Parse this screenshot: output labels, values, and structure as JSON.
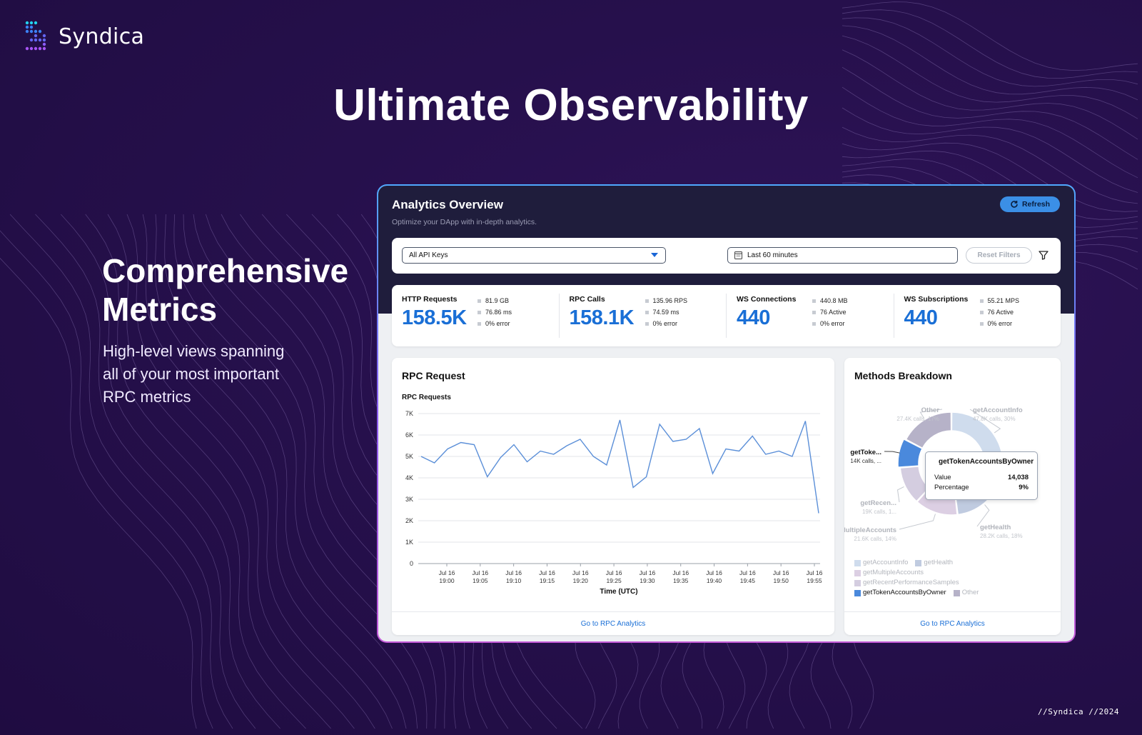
{
  "brand": {
    "name": "Syndica"
  },
  "hero": {
    "title": "Ultimate Observability"
  },
  "side": {
    "title_line1": "Comprehensive",
    "title_line2": "Metrics",
    "desc_line1": "High-level views spanning",
    "desc_line2": "all of your most important",
    "desc_line3": "RPC metrics"
  },
  "footer": {
    "tag": "//Syndica //2024"
  },
  "dashboard": {
    "title": "Analytics Overview",
    "subtitle": "Optimize your DApp with in-depth analytics.",
    "refresh_label": "Refresh",
    "filters": {
      "api_keys_value": "All API Keys",
      "time_range_value": "Last 60 minutes",
      "reset_label": "Reset Filters"
    },
    "stats": [
      {
        "label": "HTTP Requests",
        "value": "158.5K",
        "details": [
          "81.9 GB",
          "76.86 ms",
          "0% error"
        ]
      },
      {
        "label": "RPC Calls",
        "value": "158.1K",
        "details": [
          "135.96 RPS",
          "74.59 ms",
          "0% error"
        ]
      },
      {
        "label": "WS Connections",
        "value": "440",
        "details": [
          "440.8 MB",
          "76 Active",
          "0% error"
        ]
      },
      {
        "label": "WS Subscriptions",
        "value": "440",
        "details": [
          "55.21 MPS",
          "76 Active",
          "0% error"
        ]
      }
    ],
    "rpc_card": {
      "title": "RPC Request",
      "footer_link": "Go to RPC Analytics"
    },
    "methods_card": {
      "title": "Methods Breakdown",
      "footer_link": "Go to RPC Analytics",
      "tooltip": {
        "name": "getTokenAccountsByOwner",
        "value_label": "Value",
        "value": "14,038",
        "pct_label": "Percentage",
        "pct": "9%"
      },
      "legend": [
        "getAccountInfo",
        "getHealth",
        "getMultipleAccounts",
        "getRecentPerformanceSamples",
        "getTokenAccountsByOwner",
        "Other"
      ]
    }
  },
  "chart_data": [
    {
      "type": "line",
      "title": "RPC Requests",
      "xlabel": "Time (UTC)",
      "ylabel": "",
      "ylim": [
        0,
        7000
      ],
      "y_ticks": [
        "0",
        "1K",
        "2K",
        "3K",
        "4K",
        "5K",
        "6K",
        "7K"
      ],
      "x_ticks": [
        [
          "Jul 16",
          "19:00"
        ],
        [
          "Jul 16",
          "19:05"
        ],
        [
          "Jul 16",
          "19:10"
        ],
        [
          "Jul 16",
          "19:15"
        ],
        [
          "Jul 16",
          "19:20"
        ],
        [
          "Jul 16",
          "19:25"
        ],
        [
          "Jul 16",
          "19:30"
        ],
        [
          "Jul 16",
          "19:35"
        ],
        [
          "Jul 16",
          "19:40"
        ],
        [
          "Jul 16",
          "19:45"
        ],
        [
          "Jul 16",
          "19:50"
        ],
        [
          "Jul 16",
          "19:55"
        ]
      ],
      "grid": true,
      "color": "#5b8fd8",
      "values": [
        5000,
        4700,
        5350,
        5650,
        5550,
        4050,
        4950,
        5550,
        4750,
        5250,
        5100,
        5500,
        5800,
        5000,
        4600,
        6700,
        3550,
        4050,
        6500,
        5700,
        5800,
        6300,
        4200,
        5350,
        5250,
        5950,
        5100,
        5250,
        5000,
        6650,
        2350
      ]
    },
    {
      "type": "pie",
      "title": "Methods Breakdown",
      "donut": true,
      "slices": [
        {
          "label": "getAccountInfo",
          "value": 47800,
          "pct": 30,
          "sub": "47.8K calls, 30%",
          "color": "#cfdced"
        },
        {
          "label": "getHealth",
          "value": 28200,
          "pct": 18,
          "sub": "28.2K calls, 18%",
          "color": "#c0cbe0"
        },
        {
          "label": "getMultipleAccounts",
          "value": 21600,
          "pct": 14,
          "sub": "21.6K calls, 14%",
          "color": "#dccfe3"
        },
        {
          "label": "getRecen...",
          "value": 19000,
          "pct": 12,
          "sub": "19K calls, 1...",
          "color": "#d4cde0"
        },
        {
          "label": "getToke...",
          "value": 14038,
          "pct": 9,
          "sub": "14K calls, ...",
          "color": "#4a89dc"
        },
        {
          "label": "Other",
          "value": 27400,
          "pct": 17,
          "sub": "27.4K calls, 17%",
          "color": "#b6b2c8"
        }
      ]
    }
  ]
}
